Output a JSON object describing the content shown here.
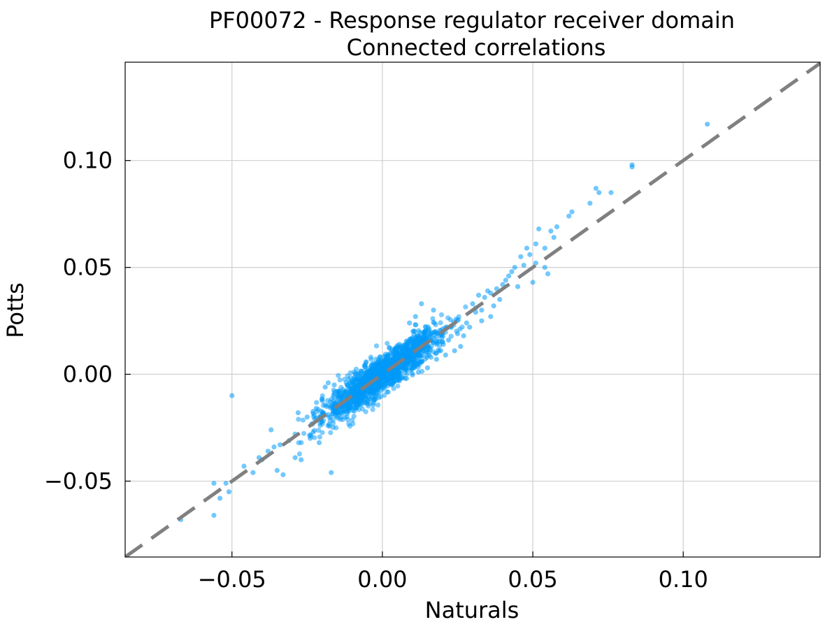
{
  "chart_data": {
    "type": "scatter",
    "title": "PF00072 - Response regulator receiver domain",
    "subtitle": "Connected correlations",
    "xlabel": "Naturals",
    "ylabel": "Potts",
    "xlim": [
      -0.0855,
      0.1455
    ],
    "ylim": [
      -0.0855,
      0.146
    ],
    "xticks": [
      -0.05,
      0.0,
      0.05,
      0.1
    ],
    "yticks": [
      -0.05,
      0.0,
      0.05,
      0.1
    ],
    "xtick_labels": [
      "−0.05",
      "0.00",
      "0.05",
      "0.10"
    ],
    "ytick_labels": [
      "−0.05",
      "0.00",
      "0.05",
      "0.10"
    ],
    "grid": true,
    "legend": "none",
    "point_color": "#009AFA",
    "reference_line": {
      "style": "dashed",
      "color": "#808080",
      "slope": 1,
      "intercept": 0
    },
    "dense_cloud": {
      "x_range": [
        -0.03,
        0.04
      ],
      "center_slope": 1.0,
      "sample_count": 1800,
      "spread": 0.004
    },
    "series": [
      {
        "x": [
          0.108,
          0.083,
          0.083,
          0.071,
          0.072,
          0.076,
          0.069,
          0.063,
          0.062,
          0.058,
          0.052,
          0.056,
          0.057,
          0.054,
          0.051,
          0.048,
          0.046,
          0.049,
          0.051,
          0.054,
          0.05,
          0.055,
          0.047,
          0.044,
          0.043,
          0.041,
          0.04,
          0.038,
          0.042,
          0.045,
          0.036,
          0.034,
          0.039,
          0.037,
          0.033,
          0.031,
          0.035,
          0.032,
          0.03,
          0.036,
          0.028,
          -0.067,
          -0.056,
          -0.056,
          -0.054,
          -0.052,
          -0.051,
          -0.05,
          -0.046,
          -0.043,
          -0.04,
          -0.041,
          -0.038,
          -0.036,
          -0.034,
          -0.033,
          -0.031,
          -0.037,
          -0.035,
          -0.029,
          -0.027,
          -0.029,
          -0.018,
          -0.019,
          -0.016,
          -0.022,
          -0.025,
          -0.017,
          -0.012,
          -0.01,
          0.013,
          0.017,
          0.011,
          0.009,
          0.022,
          0.02,
          0.018,
          0.025,
          0.027,
          0.029,
          0.026,
          0.024,
          0.021,
          0.018,
          0.015,
          0.012,
          0.008,
          0.005,
          -0.005,
          -0.008,
          -0.003,
          0.003,
          -0.028,
          -0.027,
          -0.024,
          -0.023,
          -0.021,
          0.031,
          0.033
        ],
        "y": [
          0.117,
          0.098,
          0.097,
          0.087,
          0.085,
          0.085,
          0.08,
          0.076,
          0.074,
          0.069,
          0.068,
          0.067,
          0.064,
          0.059,
          0.061,
          0.059,
          0.055,
          0.056,
          0.052,
          0.05,
          0.043,
          0.047,
          0.051,
          0.05,
          0.048,
          0.044,
          0.042,
          0.04,
          0.046,
          0.041,
          0.038,
          0.036,
          0.035,
          0.032,
          0.03,
          0.029,
          0.039,
          0.037,
          0.033,
          0.027,
          0.024,
          -0.068,
          -0.066,
          -0.051,
          -0.058,
          -0.051,
          -0.055,
          -0.01,
          -0.043,
          -0.046,
          -0.04,
          -0.039,
          -0.036,
          -0.034,
          -0.033,
          -0.047,
          -0.031,
          -0.026,
          -0.045,
          -0.039,
          -0.04,
          -0.028,
          -0.004,
          -0.006,
          -0.005,
          -0.016,
          -0.02,
          -0.046,
          -0.004,
          -0.003,
          0.033,
          0.03,
          0.027,
          0.024,
          0.016,
          0.015,
          0.014,
          0.019,
          0.018,
          0.022,
          0.013,
          0.011,
          0.009,
          0.007,
          0.003,
          0.001,
          -0.002,
          -0.001,
          -0.013,
          -0.012,
          -0.009,
          -0.005,
          -0.018,
          -0.032,
          -0.03,
          -0.027,
          -0.032,
          0.031,
          0.025
        ]
      }
    ]
  }
}
